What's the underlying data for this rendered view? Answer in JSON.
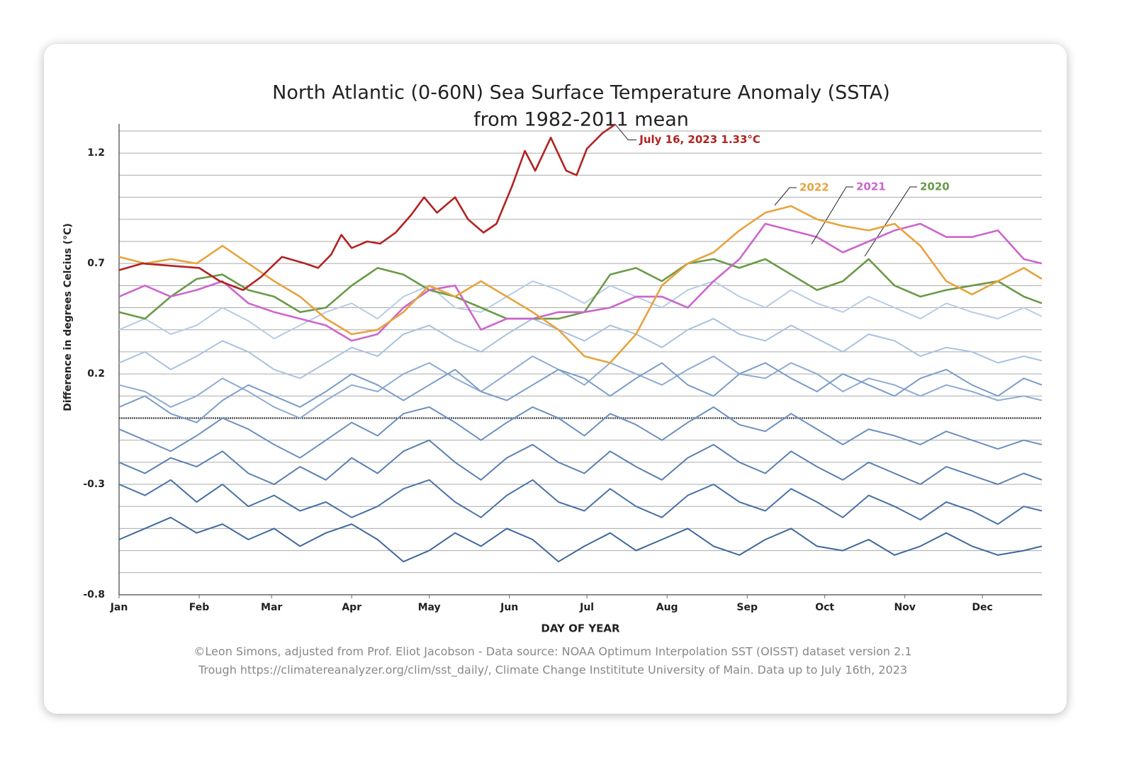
{
  "chart_data": {
    "type": "line",
    "title": [
      "North Atlantic (0-60N) Sea Surface Temperature Anomaly (SSTA)",
      "from 1982-2011 mean"
    ],
    "ylabel": "Difference in degrees Celcius (°C)",
    "xlabel": "DAY OF YEAR",
    "footer": [
      "©Leon Simons, adjusted from Prof. Eliot Jacobson - Data source: NOAA Optimum Interpolation SST (OISST) dataset version 2.1",
      "Trough https://climatereanalyzer.org/clim/sst_daily/, Climate Change Instititute University of Main. Data up to July 16th, 2023"
    ],
    "annotation": "July 16, 2023 1.33°C",
    "xlim": [
      0,
      357
    ],
    "xticks": [
      {
        "value": 0,
        "label": "Jan"
      },
      {
        "value": 31,
        "label": "Feb"
      },
      {
        "value": 59,
        "label": "Mar"
      },
      {
        "value": 90,
        "label": "Apr"
      },
      {
        "value": 120,
        "label": "May"
      },
      {
        "value": 151,
        "label": "Jun"
      },
      {
        "value": 181,
        "label": "Jul"
      },
      {
        "value": 212,
        "label": "Aug"
      },
      {
        "value": 243,
        "label": "Sep"
      },
      {
        "value": 273,
        "label": "Oct"
      },
      {
        "value": 304,
        "label": "Nov"
      },
      {
        "value": 334,
        "label": "Dec"
      }
    ],
    "ylim": [
      -0.8,
      1.3
    ],
    "yticks": [
      -0.8,
      -0.3,
      0.2,
      0.7,
      1.2
    ],
    "ygrid": [
      -0.7,
      -0.6,
      -0.5,
      -0.4,
      -0.3,
      -0.2,
      -0.1,
      0,
      0.1,
      0.2,
      0.3,
      0.4,
      0.5,
      0.6,
      0.7,
      0.8,
      0.9,
      1.0,
      1.1,
      1.2,
      1.3
    ],
    "x": [
      0,
      10,
      20,
      30,
      40,
      50,
      60,
      70,
      80,
      90,
      100,
      110,
      120,
      130,
      140,
      150,
      160,
      170,
      180,
      190,
      200,
      210,
      220,
      230,
      240,
      250,
      260,
      270,
      280,
      290,
      300,
      310,
      320,
      330,
      340,
      350,
      357
    ],
    "series": [
      {
        "color": "#b8cce4",
        "values": [
          0.4,
          0.45,
          0.38,
          0.42,
          0.5,
          0.44,
          0.36,
          0.42,
          0.48,
          0.52,
          0.45,
          0.55,
          0.6,
          0.5,
          0.48,
          0.55,
          0.62,
          0.58,
          0.52,
          0.6,
          0.55,
          0.5,
          0.58,
          0.62,
          0.55,
          0.5,
          0.58,
          0.52,
          0.48,
          0.55,
          0.5,
          0.45,
          0.52,
          0.48,
          0.45,
          0.5,
          0.46
        ]
      },
      {
        "color": "#a9c1e0",
        "values": [
          0.25,
          0.3,
          0.22,
          0.28,
          0.35,
          0.3,
          0.22,
          0.18,
          0.25,
          0.32,
          0.28,
          0.38,
          0.42,
          0.35,
          0.3,
          0.38,
          0.45,
          0.4,
          0.35,
          0.42,
          0.38,
          0.32,
          0.4,
          0.45,
          0.38,
          0.35,
          0.42,
          0.36,
          0.3,
          0.38,
          0.35,
          0.28,
          0.32,
          0.3,
          0.25,
          0.28,
          0.26
        ]
      },
      {
        "color": "#8fabd2",
        "values": [
          0.15,
          0.12,
          0.05,
          0.1,
          0.18,
          0.12,
          0.05,
          0.0,
          0.08,
          0.15,
          0.12,
          0.2,
          0.25,
          0.18,
          0.12,
          0.2,
          0.28,
          0.22,
          0.15,
          0.25,
          0.2,
          0.15,
          0.22,
          0.28,
          0.2,
          0.18,
          0.25,
          0.2,
          0.12,
          0.18,
          0.15,
          0.1,
          0.15,
          0.12,
          0.08,
          0.1,
          0.08
        ]
      },
      {
        "color": "#7b9cc8",
        "values": [
          0.05,
          0.1,
          0.02,
          -0.02,
          0.08,
          0.15,
          0.1,
          0.05,
          0.12,
          0.2,
          0.15,
          0.08,
          0.15,
          0.22,
          0.12,
          0.08,
          0.15,
          0.22,
          0.18,
          0.1,
          0.18,
          0.25,
          0.15,
          0.1,
          0.2,
          0.25,
          0.18,
          0.12,
          0.2,
          0.15,
          0.1,
          0.18,
          0.22,
          0.15,
          0.1,
          0.18,
          0.15
        ]
      },
      {
        "color": "#6d8fbf",
        "values": [
          -0.05,
          -0.1,
          -0.15,
          -0.08,
          0.0,
          -0.05,
          -0.12,
          -0.18,
          -0.1,
          -0.02,
          -0.08,
          0.02,
          0.05,
          -0.02,
          -0.1,
          -0.02,
          0.05,
          0.0,
          -0.08,
          0.02,
          -0.03,
          -0.1,
          -0.02,
          0.05,
          -0.03,
          -0.06,
          0.02,
          -0.05,
          -0.12,
          -0.05,
          -0.08,
          -0.12,
          -0.06,
          -0.1,
          -0.14,
          -0.1,
          -0.12
        ]
      },
      {
        "color": "#5a7fb0",
        "values": [
          -0.2,
          -0.25,
          -0.18,
          -0.22,
          -0.15,
          -0.25,
          -0.3,
          -0.22,
          -0.28,
          -0.18,
          -0.25,
          -0.15,
          -0.1,
          -0.2,
          -0.28,
          -0.18,
          -0.12,
          -0.2,
          -0.25,
          -0.15,
          -0.22,
          -0.28,
          -0.18,
          -0.12,
          -0.2,
          -0.25,
          -0.15,
          -0.22,
          -0.28,
          -0.2,
          -0.25,
          -0.3,
          -0.22,
          -0.26,
          -0.3,
          -0.25,
          -0.28
        ]
      },
      {
        "color": "#4a71a6",
        "values": [
          -0.3,
          -0.35,
          -0.28,
          -0.38,
          -0.3,
          -0.4,
          -0.35,
          -0.42,
          -0.38,
          -0.45,
          -0.4,
          -0.32,
          -0.28,
          -0.38,
          -0.45,
          -0.35,
          -0.28,
          -0.38,
          -0.42,
          -0.32,
          -0.4,
          -0.45,
          -0.35,
          -0.3,
          -0.38,
          -0.42,
          -0.32,
          -0.38,
          -0.45,
          -0.35,
          -0.4,
          -0.46,
          -0.38,
          -0.42,
          -0.48,
          -0.4,
          -0.42
        ]
      },
      {
        "color": "#3f679c",
        "values": [
          -0.55,
          -0.5,
          -0.45,
          -0.52,
          -0.48,
          -0.55,
          -0.5,
          -0.58,
          -0.52,
          -0.48,
          -0.55,
          -0.65,
          -0.6,
          -0.52,
          -0.58,
          -0.5,
          -0.55,
          -0.65,
          -0.58,
          -0.52,
          -0.6,
          -0.55,
          -0.5,
          -0.58,
          -0.62,
          -0.55,
          -0.5,
          -0.58,
          -0.6,
          -0.55,
          -0.62,
          -0.58,
          -0.52,
          -0.58,
          -0.62,
          -0.6,
          -0.58
        ]
      },
      {
        "name": "2020",
        "color": "#6a9a48",
        "values": [
          0.48,
          0.45,
          0.55,
          0.63,
          0.65,
          0.58,
          0.55,
          0.48,
          0.5,
          0.6,
          0.68,
          0.65,
          0.58,
          0.55,
          0.5,
          0.45,
          0.45,
          0.45,
          0.48,
          0.65,
          0.68,
          0.62,
          0.7,
          0.72,
          0.68,
          0.72,
          0.65,
          0.58,
          0.62,
          0.72,
          0.6,
          0.55,
          0.58,
          0.6,
          0.62,
          0.55,
          0.52
        ]
      },
      {
        "name": "2021",
        "color": "#cc66cc",
        "values": [
          0.55,
          0.6,
          0.55,
          0.58,
          0.62,
          0.52,
          0.48,
          0.45,
          0.42,
          0.35,
          0.38,
          0.5,
          0.58,
          0.6,
          0.4,
          0.45,
          0.45,
          0.48,
          0.48,
          0.5,
          0.55,
          0.55,
          0.5,
          0.62,
          0.72,
          0.88,
          0.85,
          0.82,
          0.75,
          0.8,
          0.85,
          0.88,
          0.82,
          0.82,
          0.85,
          0.72,
          0.7
        ]
      },
      {
        "name": "2022",
        "color": "#e8a33d",
        "values": [
          0.73,
          0.7,
          0.72,
          0.7,
          0.78,
          0.7,
          0.62,
          0.55,
          0.45,
          0.38,
          0.4,
          0.48,
          0.6,
          0.55,
          0.62,
          0.55,
          0.48,
          0.4,
          0.28,
          0.25,
          0.38,
          0.6,
          0.7,
          0.75,
          0.85,
          0.93,
          0.96,
          0.9,
          0.87,
          0.85,
          0.88,
          0.78,
          0.62,
          0.56,
          0.62,
          0.68,
          0.63
        ]
      },
      {
        "color": "#b22222",
        "x": [
          0,
          9,
          20,
          31,
          39,
          48,
          55,
          63,
          72,
          77,
          82,
          86,
          90,
          96,
          101,
          107,
          113,
          118,
          123,
          130,
          135,
          141,
          146,
          152,
          157,
          161,
          167,
          173,
          177,
          181,
          187,
          192
        ],
        "values": [
          0.67,
          0.7,
          0.69,
          0.68,
          0.62,
          0.58,
          0.64,
          0.73,
          0.7,
          0.68,
          0.74,
          0.83,
          0.77,
          0.8,
          0.79,
          0.84,
          0.92,
          1.0,
          0.93,
          1.0,
          0.9,
          0.84,
          0.88,
          1.05,
          1.21,
          1.12,
          1.27,
          1.12,
          1.1,
          1.22,
          1.29,
          1.33
        ]
      }
    ]
  }
}
